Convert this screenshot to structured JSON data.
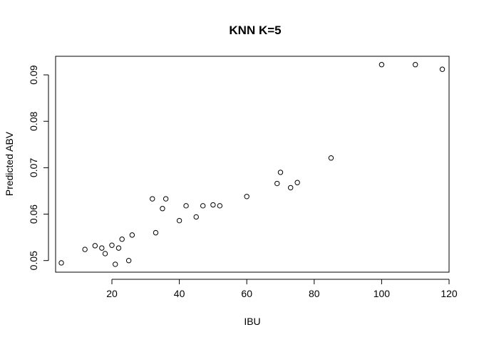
{
  "chart_data": {
    "type": "scatter",
    "title": "KNN K=5",
    "xlabel": "IBU",
    "ylabel": "Predicted ABV",
    "xlim": [
      3.3,
      120.0
    ],
    "ylim": [
      0.0475,
      0.094
    ],
    "xticks": [
      20,
      40,
      60,
      80,
      100,
      120
    ],
    "yticks": [
      0.05,
      0.06,
      0.07,
      0.08,
      0.09
    ],
    "xtick_labels": [
      "20",
      "40",
      "60",
      "80",
      "100",
      "120"
    ],
    "ytick_labels": [
      "0.05",
      "0.06",
      "0.07",
      "0.08",
      "0.09"
    ],
    "grid": false,
    "points": [
      {
        "x": 5,
        "y": 0.0495
      },
      {
        "x": 12,
        "y": 0.0524
      },
      {
        "x": 15,
        "y": 0.0532
      },
      {
        "x": 17,
        "y": 0.0527
      },
      {
        "x": 18,
        "y": 0.0515
      },
      {
        "x": 20,
        "y": 0.0533
      },
      {
        "x": 21,
        "y": 0.0492
      },
      {
        "x": 22,
        "y": 0.0527
      },
      {
        "x": 23,
        "y": 0.0546
      },
      {
        "x": 25,
        "y": 0.05
      },
      {
        "x": 26,
        "y": 0.0555
      },
      {
        "x": 32,
        "y": 0.0633
      },
      {
        "x": 33,
        "y": 0.056
      },
      {
        "x": 35,
        "y": 0.0612
      },
      {
        "x": 36,
        "y": 0.0633
      },
      {
        "x": 40,
        "y": 0.0586
      },
      {
        "x": 42,
        "y": 0.0618
      },
      {
        "x": 45,
        "y": 0.0594
      },
      {
        "x": 47,
        "y": 0.0618
      },
      {
        "x": 50,
        "y": 0.062
      },
      {
        "x": 52,
        "y": 0.0618
      },
      {
        "x": 60,
        "y": 0.0638
      },
      {
        "x": 69,
        "y": 0.0666
      },
      {
        "x": 70,
        "y": 0.069
      },
      {
        "x": 73,
        "y": 0.0657
      },
      {
        "x": 75,
        "y": 0.0668
      },
      {
        "x": 85,
        "y": 0.0721
      },
      {
        "x": 100,
        "y": 0.0922
      },
      {
        "x": 110,
        "y": 0.0922
      },
      {
        "x": 118,
        "y": 0.0912
      }
    ]
  }
}
